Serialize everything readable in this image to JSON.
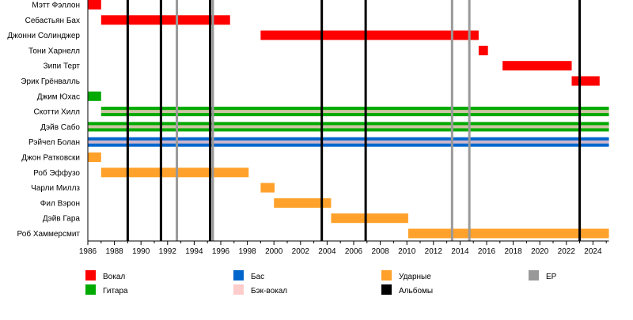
{
  "chart_data": {
    "type": "timeline",
    "xlim": [
      1986,
      2025.2
    ],
    "x_ticks": [
      "1986",
      "1988",
      "1990",
      "1992",
      "1994",
      "1996",
      "1998",
      "2000",
      "2002",
      "2004",
      "2006",
      "2008",
      "2010",
      "2012",
      "2014",
      "2016",
      "2018",
      "2020",
      "2022",
      "2024"
    ],
    "colors": {
      "vocals": "#ff0000",
      "guitar": "#00aa00",
      "bass": "#0066cc",
      "backing": "#ffcccc",
      "drums": "#ffa12a",
      "albums": "#000000",
      "ep": "#999999"
    },
    "legend": [
      {
        "key": "vocals",
        "label": "Вокал"
      },
      {
        "key": "bass",
        "label": "Бас"
      },
      {
        "key": "drums",
        "label": "Ударные"
      },
      {
        "key": "ep",
        "label": "EP"
      },
      {
        "key": "guitar",
        "label": "Гитара"
      },
      {
        "key": "backing",
        "label": "Бэк-вокал"
      },
      {
        "key": "albums",
        "label": "Альбомы"
      }
    ],
    "legend_placement": "bottom",
    "members": [
      {
        "name": "Мэтт Фэллон",
        "periods": [
          {
            "role": "vocals",
            "start": 1986,
            "end": 1987
          }
        ]
      },
      {
        "name": "Себастьян Бах",
        "periods": [
          {
            "role": "vocals",
            "start": 1987,
            "end": 1996.7
          }
        ]
      },
      {
        "name": "Джонни Солинджер",
        "periods": [
          {
            "role": "vocals",
            "start": 1999,
            "end": 2015.4
          }
        ]
      },
      {
        "name": "Тони Харнелл",
        "periods": [
          {
            "role": "vocals",
            "start": 2015.4,
            "end": 2016.1
          }
        ]
      },
      {
        "name": "Зипи Терт",
        "periods": [
          {
            "role": "vocals",
            "start": 2017.2,
            "end": 2022.4
          }
        ]
      },
      {
        "name": "Эрик Грёнвалль",
        "periods": [
          {
            "role": "vocals",
            "start": 2022.4,
            "end": 2024.5
          }
        ]
      },
      {
        "name": "Джим Юхас",
        "periods": [
          {
            "role": "guitar",
            "start": 1986,
            "end": 1987
          }
        ]
      },
      {
        "name": "Скотти Хилл",
        "periods": [
          {
            "role": "guitar",
            "backing": true,
            "start": 1987,
            "end": 2025.2
          }
        ]
      },
      {
        "name": "Дэйв Сабо",
        "periods": [
          {
            "role": "guitar",
            "backing": true,
            "start": 1986,
            "end": 2025.2
          }
        ]
      },
      {
        "name": "Рэйчел Болан",
        "periods": [
          {
            "role": "bass",
            "backing": true,
            "start": 1986,
            "end": 2025.2
          }
        ]
      },
      {
        "name": "Джон Ратковски",
        "periods": [
          {
            "role": "drums",
            "start": 1986,
            "end": 1987
          }
        ]
      },
      {
        "name": "Роб Эффузо",
        "periods": [
          {
            "role": "drums",
            "start": 1987,
            "end": 1998.1
          }
        ]
      },
      {
        "name": "Чарли Миллз",
        "periods": [
          {
            "role": "drums",
            "start": 1999,
            "end": 2000.05
          }
        ]
      },
      {
        "name": "Фил Вэрон",
        "periods": [
          {
            "role": "drums",
            "start": 2000,
            "end": 2004.3
          }
        ]
      },
      {
        "name": "Дэйв Гара",
        "periods": [
          {
            "role": "drums",
            "start": 2004.3,
            "end": 2010.1
          }
        ]
      },
      {
        "name": "Роб Хаммерсмит",
        "periods": [
          {
            "role": "drums",
            "start": 2010.1,
            "end": 2025.2
          }
        ]
      }
    ],
    "albums": [
      1989.0,
      1991.5,
      1995.2,
      2003.6,
      2006.9,
      2023.0
    ],
    "eps": [
      1992.7,
      1995.4,
      2013.4,
      2014.7
    ]
  }
}
